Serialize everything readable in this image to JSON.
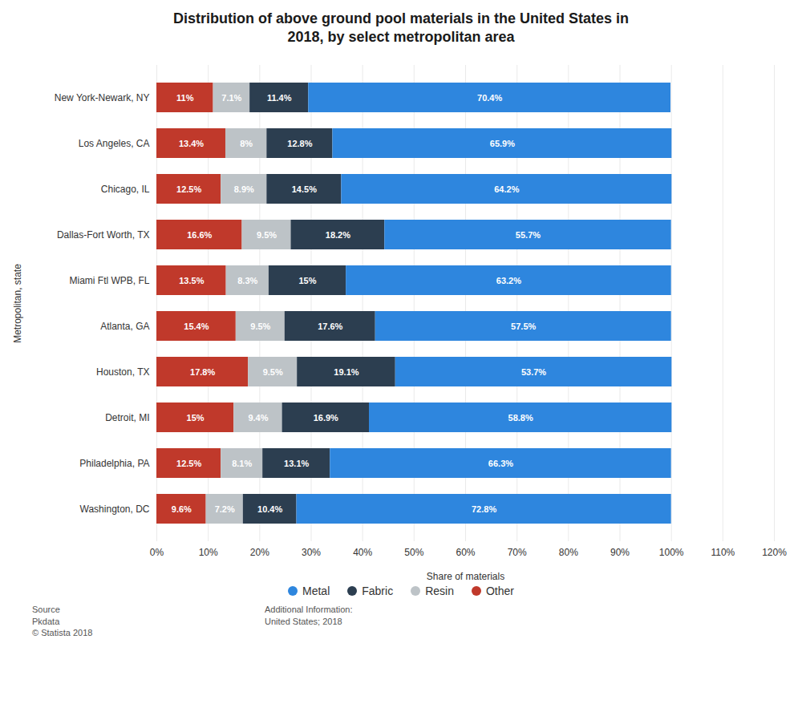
{
  "chart_data": {
    "type": "bar",
    "orientation": "horizontal",
    "stacked": true,
    "data_labels": true,
    "grid": true,
    "legend": "bottom",
    "title": "Distribution of above ground pool materials in the United States in\n2018, by select metropolitan area",
    "xlabel": "Share of materials",
    "ylabel": "Metropolitan, state",
    "categories": [
      "New York-Newark, NY",
      "Los Angeles, CA",
      "Chicago, IL",
      "Dallas-Fort Worth, TX",
      "Miami Ftl WPB, FL",
      "Atlanta, GA",
      "Houston, TX",
      "Detroit, MI",
      "Philadelphia, PA",
      "Washington, DC"
    ],
    "series": [
      {
        "name": "Other",
        "color": "#c0392b",
        "values": [
          11.0,
          13.4,
          12.5,
          16.6,
          13.5,
          15.4,
          17.8,
          15.0,
          12.5,
          9.6
        ],
        "value_labels": [
          "11%",
          "13.4%",
          "12.5%",
          "16.6%",
          "13.5%",
          "15.4%",
          "17.8%",
          "15%",
          "12.5%",
          "9.6%"
        ]
      },
      {
        "name": "Resin",
        "color": "#bdc3c7",
        "values": [
          7.1,
          8.0,
          8.9,
          9.5,
          8.3,
          9.5,
          9.5,
          9.4,
          8.1,
          7.2
        ],
        "value_labels": [
          "7.1%",
          "8%",
          "8.9%",
          "9.5%",
          "8.3%",
          "9.5%",
          "9.5%",
          "9.4%",
          "8.1%",
          "7.2%"
        ]
      },
      {
        "name": "Fabric",
        "color": "#2c3e50",
        "values": [
          11.4,
          12.8,
          14.5,
          18.2,
          15.0,
          17.6,
          19.1,
          16.9,
          13.1,
          10.4
        ],
        "value_labels": [
          "11.4%",
          "12.8%",
          "14.5%",
          "18.2%",
          "15%",
          "17.6%",
          "19.1%",
          "16.9%",
          "13.1%",
          "10.4%"
        ]
      },
      {
        "name": "Metal",
        "color": "#2e86de",
        "values": [
          70.4,
          65.9,
          64.2,
          55.7,
          63.2,
          57.5,
          53.7,
          58.8,
          66.3,
          72.8
        ],
        "value_labels": [
          "70.4%",
          "65.9%",
          "64.2%",
          "55.7%",
          "63.2%",
          "57.5%",
          "53.7%",
          "58.8%",
          "66.3%",
          "72.8%"
        ]
      }
    ],
    "xlim": [
      0,
      120
    ],
    "xticks": [
      {
        "value": 0,
        "label": "0%"
      },
      {
        "value": 10,
        "label": "10%"
      },
      {
        "value": 20,
        "label": "20%"
      },
      {
        "value": 30,
        "label": "30%"
      },
      {
        "value": 40,
        "label": "40%"
      },
      {
        "value": 50,
        "label": "50%"
      },
      {
        "value": 60,
        "label": "60%"
      },
      {
        "value": 70,
        "label": "70%"
      },
      {
        "value": 80,
        "label": "80%"
      },
      {
        "value": 90,
        "label": "90%"
      },
      {
        "value": 100,
        "label": "100%"
      },
      {
        "value": 110,
        "label": "110%"
      },
      {
        "value": 120,
        "label": "120%"
      }
    ],
    "annotations": [
      "Source\nPkdata\n© Statista 2018",
      "Additional Information:\nUnited States; 2018"
    ]
  }
}
